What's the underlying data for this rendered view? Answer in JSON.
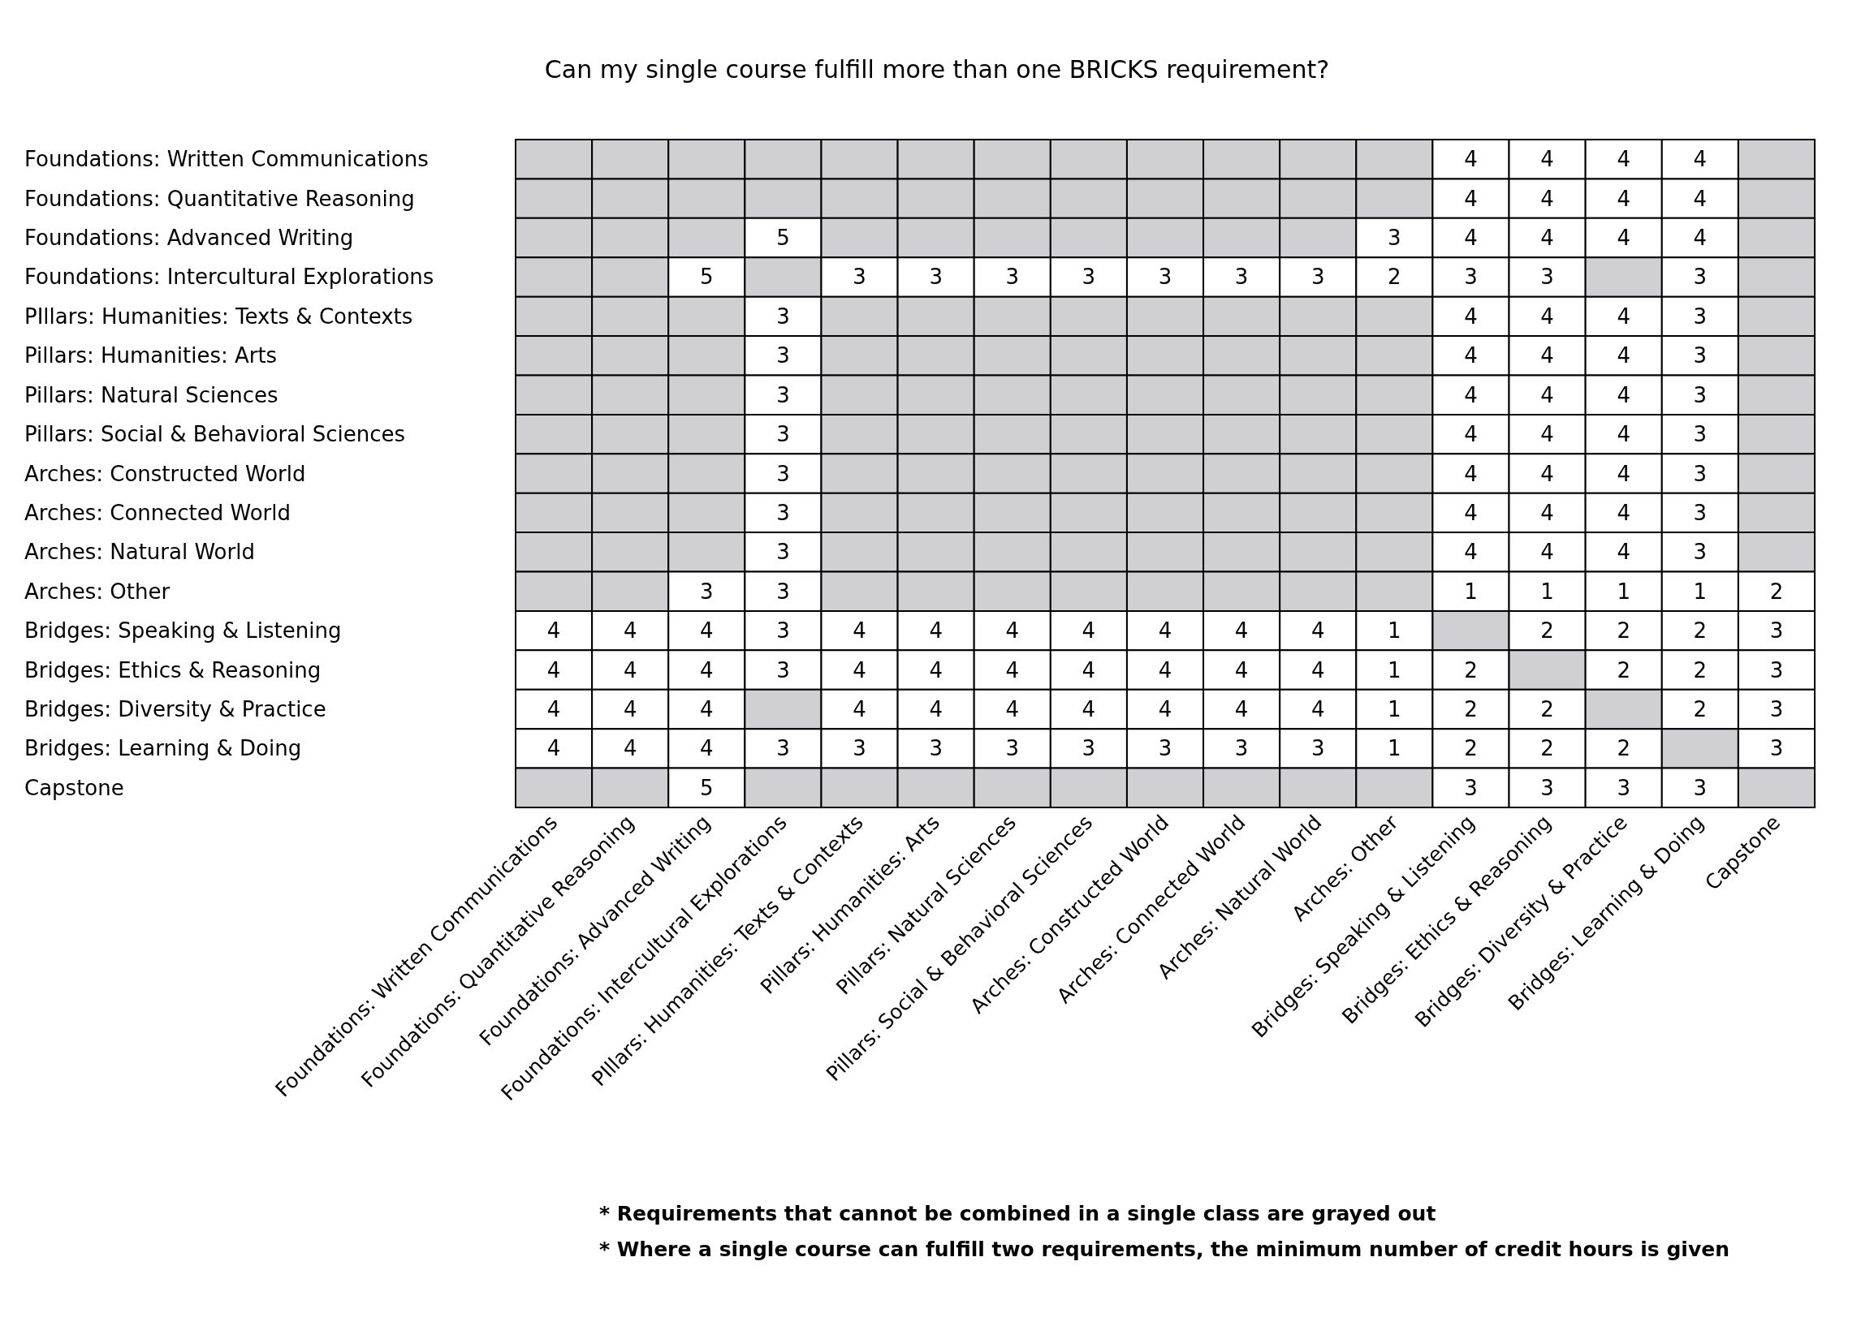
{
  "chart_data": {
    "type": "heatmap",
    "title": "Can my single course fulfill more than one BRICKS requirement?",
    "categories": [
      "Foundations: Written Communications",
      "Foundations: Quantitative Reasoning",
      "Foundations: Advanced Writing",
      "Foundations: Intercultural Explorations",
      "PIllars: Humanities: Texts & Contexts",
      "Pillars: Humanities: Arts",
      "Pillars: Natural Sciences",
      "Pillars: Social & Behavioral Sciences",
      "Arches: Constructed World",
      "Arches: Connected World",
      "Arches: Natural World",
      "Arches: Other",
      "Bridges: Speaking & Listening",
      "Bridges: Ethics & Reasoning",
      "Bridges: Diversity & Practice",
      "Bridges: Learning & Doing",
      "Capstone"
    ],
    "y_categories": [
      "Foundations: Written Communications",
      "Foundations: Quantitative Reasoning",
      "Foundations: Advanced Writing",
      "Foundations: Intercultural Explorations",
      "PIllars: Humanities: Texts & Contexts",
      "Pillars: Humanities: Arts",
      "Pillars: Natural Sciences",
      "Pillars: Social & Behavioral Sciences",
      "Arches: Constructed World",
      "Arches: Connected World",
      "Arches: Natural World",
      "Arches: Other",
      "Bridges: Speaking & Listening",
      "Bridges: Ethics & Reasoning",
      "Bridges: Diversity & Practice",
      "Bridges: Learning & Doing",
      "Capstone"
    ],
    "cells": [
      [
        null,
        null,
        null,
        null,
        null,
        null,
        null,
        null,
        null,
        null,
        null,
        null,
        4,
        4,
        4,
        4,
        null
      ],
      [
        null,
        null,
        null,
        null,
        null,
        null,
        null,
        null,
        null,
        null,
        null,
        null,
        4,
        4,
        4,
        4,
        null
      ],
      [
        null,
        null,
        null,
        5,
        null,
        null,
        null,
        null,
        null,
        null,
        null,
        3,
        4,
        4,
        4,
        4,
        null
      ],
      [
        null,
        null,
        5,
        null,
        3,
        3,
        3,
        3,
        3,
        3,
        3,
        2,
        3,
        3,
        null,
        3,
        null
      ],
      [
        null,
        null,
        null,
        3,
        null,
        null,
        null,
        null,
        null,
        null,
        null,
        null,
        4,
        4,
        4,
        3,
        null
      ],
      [
        null,
        null,
        null,
        3,
        null,
        null,
        null,
        null,
        null,
        null,
        null,
        null,
        4,
        4,
        4,
        3,
        null
      ],
      [
        null,
        null,
        null,
        3,
        null,
        null,
        null,
        null,
        null,
        null,
        null,
        null,
        4,
        4,
        4,
        3,
        null
      ],
      [
        null,
        null,
        null,
        3,
        null,
        null,
        null,
        null,
        null,
        null,
        null,
        null,
        4,
        4,
        4,
        3,
        null
      ],
      [
        null,
        null,
        null,
        3,
        null,
        null,
        null,
        null,
        null,
        null,
        null,
        null,
        4,
        4,
        4,
        3,
        null
      ],
      [
        null,
        null,
        null,
        3,
        null,
        null,
        null,
        null,
        null,
        null,
        null,
        null,
        4,
        4,
        4,
        3,
        null
      ],
      [
        null,
        null,
        null,
        3,
        null,
        null,
        null,
        null,
        null,
        null,
        null,
        null,
        4,
        4,
        4,
        3,
        null
      ],
      [
        null,
        null,
        3,
        3,
        null,
        null,
        null,
        null,
        null,
        null,
        null,
        null,
        1,
        1,
        1,
        1,
        2
      ],
      [
        4,
        4,
        4,
        3,
        4,
        4,
        4,
        4,
        4,
        4,
        4,
        1,
        null,
        2,
        2,
        2,
        3
      ],
      [
        4,
        4,
        4,
        3,
        4,
        4,
        4,
        4,
        4,
        4,
        4,
        1,
        2,
        null,
        2,
        2,
        3
      ],
      [
        4,
        4,
        4,
        null,
        4,
        4,
        4,
        4,
        4,
        4,
        4,
        1,
        2,
        2,
        null,
        2,
        3
      ],
      [
        4,
        4,
        4,
        3,
        3,
        3,
        3,
        3,
        3,
        3,
        3,
        1,
        2,
        2,
        2,
        null,
        3
      ],
      [
        null,
        null,
        5,
        null,
        null,
        null,
        null,
        null,
        null,
        null,
        null,
        null,
        3,
        3,
        3,
        3,
        null
      ]
    ],
    "data_labels": true,
    "annotations": [
      "* Requirements that cannot be combined in a single class are grayed out",
      "* Where a single course can fulfill two requirements, the minimum number of credit hours is given"
    ]
  }
}
